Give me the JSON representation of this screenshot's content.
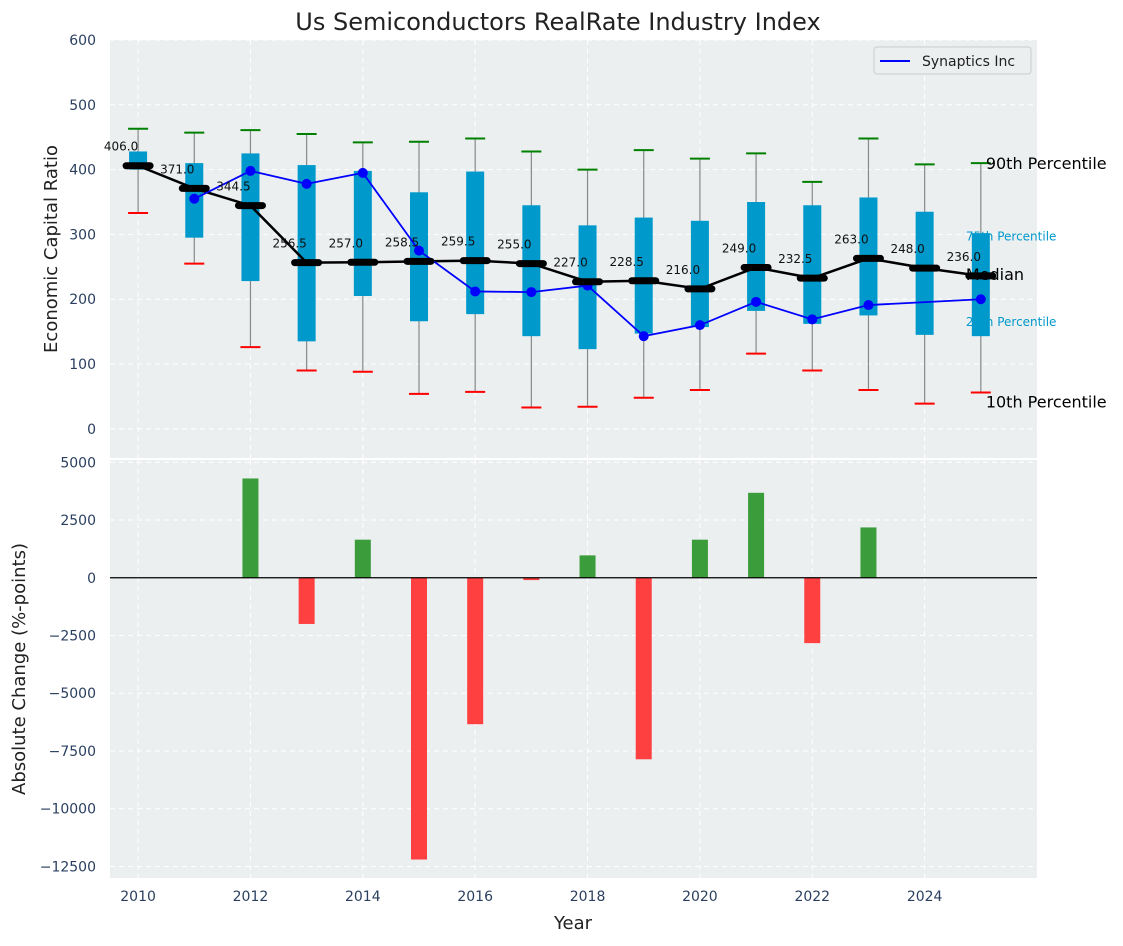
{
  "chart_data": [
    {
      "type": "box",
      "title": "Us Semiconductors RealRate Industry Index",
      "xlabel": "",
      "ylabel": "Economic Capital Ratio",
      "ylim": [
        -45,
        600
      ],
      "xlim": [
        2009.5,
        2026
      ],
      "yticks": [
        0,
        100,
        200,
        300,
        400,
        500,
        600
      ],
      "grid": true,
      "legend": {
        "placement": "top-right",
        "entries": [
          "Synaptics Inc"
        ]
      },
      "years": [
        2010,
        2011,
        2012,
        2013,
        2014,
        2015,
        2016,
        2017,
        2018,
        2019,
        2020,
        2021,
        2022,
        2023,
        2024,
        2025
      ],
      "p10": [
        333,
        255,
        126,
        90,
        88,
        54,
        57,
        33,
        34,
        48,
        60,
        116,
        90,
        60,
        39,
        56
      ],
      "p25": [
        400,
        295,
        228,
        135,
        205,
        166,
        177,
        143,
        123,
        147,
        157,
        182,
        162,
        175,
        145,
        143
      ],
      "median": [
        406.0,
        371.0,
        344.5,
        256.5,
        257.0,
        258.5,
        259.5,
        255.0,
        227.0,
        228.5,
        216.0,
        249.0,
        232.5,
        263.0,
        248.0,
        236.0
      ],
      "median_labels": [
        "406.0",
        "371.0",
        "344.5",
        "256.5",
        "257.0",
        "258.5",
        "259.5",
        "255.0",
        "227.0",
        "228.5",
        "216.0",
        "249.0",
        "232.5",
        "263.0",
        "248.0",
        "236.0"
      ],
      "p75": [
        428,
        410,
        425,
        407,
        398,
        365,
        397,
        345,
        314,
        326,
        321,
        350,
        345,
        357,
        335,
        302
      ],
      "p90": [
        463,
        457,
        461,
        455,
        442,
        443,
        448,
        428,
        400,
        430,
        417,
        425,
        381,
        448,
        408,
        410
      ],
      "series": [
        {
          "name": "Synaptics Inc",
          "color": "#0000ff",
          "values": [
            null,
            355,
            398,
            378,
            395,
            275,
            212,
            211,
            221,
            143,
            160,
            196,
            169,
            191,
            null,
            200
          ]
        }
      ],
      "annotations": {
        "p90": "90th Percentile",
        "p75": "75th Percentile",
        "median": "Median",
        "p25": "25th Percentile",
        "p10": "10th Percentile"
      },
      "colors": {
        "box": "#0099cc",
        "median": "#000000",
        "p90_cap": "#008000",
        "p10_cap": "#ff0000",
        "whisker": "#888888",
        "background": "#eceff0"
      }
    },
    {
      "type": "bar",
      "xlabel": "Year",
      "ylabel": "Absolute Change (%-points)",
      "ylim": [
        -13000,
        5100
      ],
      "xlim": [
        2009.5,
        2026
      ],
      "yticks": [
        5000,
        2500,
        0,
        -2500,
        -5000,
        -7500,
        -10000,
        -12500
      ],
      "ytick_labels": [
        "5000",
        "2500",
        "0",
        "−2500",
        "−5000",
        "−7500",
        "−10000",
        "−12500"
      ],
      "xticks": [
        2010,
        2012,
        2014,
        2016,
        2018,
        2020,
        2022,
        2024
      ],
      "xtick_labels": [
        "2010",
        "2012",
        "2014",
        "2016",
        "2018",
        "2020",
        "2022",
        "2024"
      ],
      "grid": true,
      "years": [
        2010,
        2011,
        2012,
        2013,
        2014,
        2015,
        2016,
        2017,
        2018,
        2019,
        2020,
        2021,
        2022,
        2023,
        2024,
        2025
      ],
      "values": [
        0,
        0,
        4300,
        -2000,
        1650,
        -12200,
        -6340,
        -100,
        970,
        -7860,
        1650,
        3680,
        -2830,
        2180,
        0,
        0
      ],
      "colors": {
        "positive": "#3a9c3a",
        "negative": "#ff4040"
      }
    }
  ]
}
